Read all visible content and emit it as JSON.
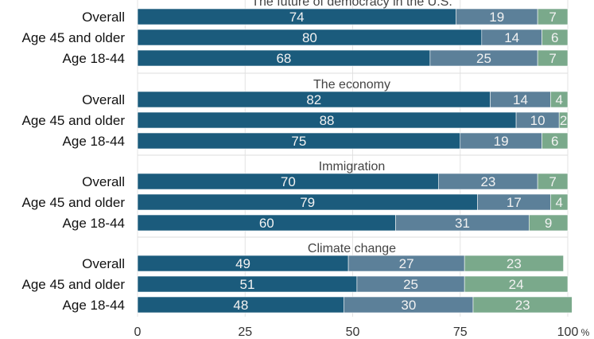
{
  "chart_data": {
    "type": "bar",
    "orientation": "horizontal",
    "stacked": true,
    "xlim": [
      0,
      100
    ],
    "x_ticks": [
      "0",
      "25",
      "50",
      "75",
      "100"
    ],
    "x_unit": "%",
    "grid": true,
    "colors": [
      "#1b5b7c",
      "#5c8099",
      "#7aa98b"
    ],
    "groups": [
      {
        "title": "The future of democracy in the U.S.",
        "rows": [
          {
            "label": "Overall",
            "values": [
              74,
              19,
              7
            ]
          },
          {
            "label": "Age 45 and older",
            "values": [
              80,
              14,
              6
            ]
          },
          {
            "label": "Age 18-44",
            "values": [
              68,
              25,
              7
            ]
          }
        ]
      },
      {
        "title": "The economy",
        "rows": [
          {
            "label": "Overall",
            "values": [
              82,
              14,
              4
            ]
          },
          {
            "label": "Age 45 and older",
            "values": [
              88,
              10,
              2
            ]
          },
          {
            "label": "Age 18-44",
            "values": [
              75,
              19,
              6
            ]
          }
        ]
      },
      {
        "title": "Immigration",
        "rows": [
          {
            "label": "Overall",
            "values": [
              70,
              23,
              7
            ]
          },
          {
            "label": "Age 45 and older",
            "values": [
              79,
              17,
              4
            ]
          },
          {
            "label": "Age 18-44",
            "values": [
              60,
              31,
              9
            ]
          }
        ]
      },
      {
        "title": "Climate change",
        "rows": [
          {
            "label": "Overall",
            "values": [
              49,
              27,
              23
            ]
          },
          {
            "label": "Age 45 and older",
            "values": [
              51,
              25,
              24
            ]
          },
          {
            "label": "Age 18-44",
            "values": [
              48,
              30,
              23
            ]
          }
        ]
      }
    ]
  }
}
